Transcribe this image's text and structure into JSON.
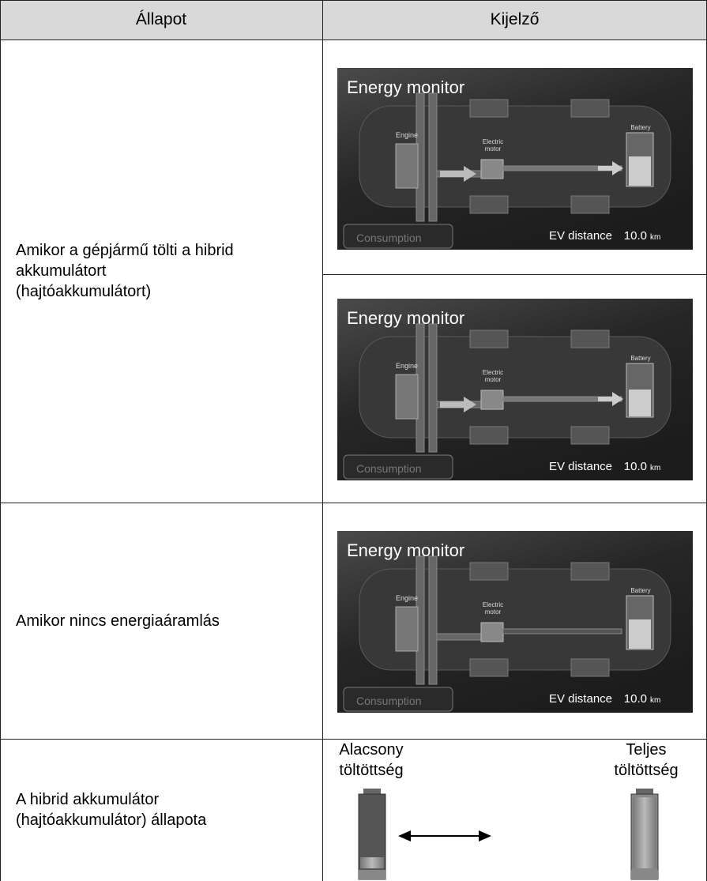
{
  "table": {
    "headers": [
      "Állapot",
      "Kijelző"
    ],
    "rows": [
      {
        "state": [
          "Amikor a gépjármű tölti a hibrid",
          "akkumulátort",
          "(hajtóakkumulátort)"
        ],
        "displays": [
          {
            "title": "Energy monitor",
            "engine": "Engine",
            "motor": [
              "Electric",
              "motor"
            ],
            "battery": "Battery",
            "tab": "Consumption",
            "distance_label": "EV distance",
            "distance": "10.0",
            "unit": "km"
          },
          {
            "title": "Energy monitor",
            "engine": "Engine",
            "motor": [
              "Electric",
              "motor"
            ],
            "battery": "Battery",
            "tab": "Consumption",
            "distance_label": "EV distance",
            "distance": "10.0",
            "unit": "km"
          }
        ]
      },
      {
        "state": [
          "Amikor nincs energiaáramlás"
        ],
        "displays": [
          {
            "title": "Energy monitor",
            "engine": "Engine",
            "motor": [
              "Electric",
              "motor"
            ],
            "battery": "Battery",
            "tab": "Consumption",
            "distance_label": "EV distance",
            "distance": "10.0",
            "unit": "km"
          }
        ]
      },
      {
        "state": [
          "A hibrid akkumulátor",
          "(hajtóakkumulátor) állapota"
        ],
        "battery_low": [
          "Alacsony",
          "töltöttség"
        ],
        "battery_full": [
          "Teljes",
          "töltöttség"
        ]
      }
    ]
  }
}
